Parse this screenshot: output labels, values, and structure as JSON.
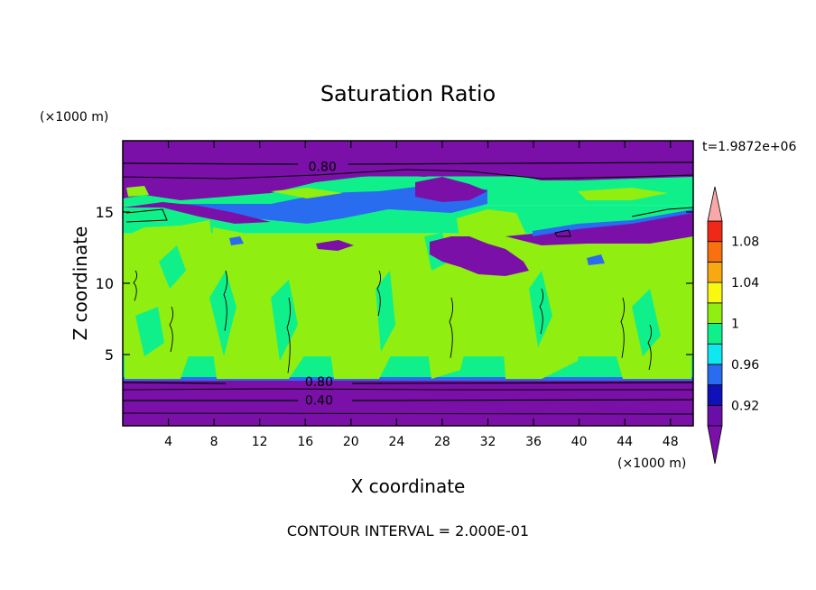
{
  "chart_data": {
    "type": "heatmap",
    "title": "Saturation Ratio",
    "xlabel": "X coordinate",
    "ylabel": "Z coordinate",
    "x_unit_label": "(×1000 m)",
    "y_unit_label": "(×1000 m)",
    "time_label": "t=1.9872e+06",
    "footer": "CONTOUR INTERVAL = 2.000E-01",
    "xlim": [
      0,
      50
    ],
    "ylim": [
      0,
      20
    ],
    "x_ticks": [
      "4",
      "8",
      "12",
      "16",
      "20",
      "24",
      "28",
      "32",
      "36",
      "40",
      "44",
      "48"
    ],
    "x_tick_values": [
      4,
      8,
      12,
      16,
      20,
      24,
      28,
      32,
      36,
      40,
      44,
      48
    ],
    "y_ticks": [
      "5",
      "10",
      "15"
    ],
    "y_tick_values": [
      5,
      10,
      15
    ],
    "colorbar": {
      "labels": [
        "0.92",
        "0.96",
        "1",
        "1.04",
        "1.08"
      ],
      "label_values": [
        0.92,
        0.96,
        1.0,
        1.04,
        1.08
      ],
      "levels": [
        0.9,
        0.92,
        0.94,
        0.96,
        0.98,
        1.0,
        1.02,
        1.04,
        1.06,
        1.08,
        1.1
      ],
      "colors": [
        "#6a0ea8",
        "#1010b8",
        "#2a6cf0",
        "#10e8f0",
        "#10f08a",
        "#90ee10",
        "#f8f810",
        "#f8a810",
        "#f87010",
        "#f02818",
        "#f8a8a8"
      ],
      "under_color": "#7a10a8",
      "over_color": "#f8a8a8"
    },
    "bands": [
      {
        "z": [
          0,
          3.5
        ],
        "color": "#7a10a8",
        "level": "below 0.90"
      },
      {
        "z": [
          3.5,
          13.5
        ],
        "color": "#90ee10",
        "level": "1.00-1.02",
        "note": "mixed with 0.98-1.00 regions"
      },
      {
        "z": [
          13.5,
          15.5
        ],
        "color": "#10f08a",
        "level": "0.98-1.00"
      },
      {
        "z": [
          15.5,
          17.5
        ],
        "color": "#10f08a",
        "level": "0.98-1.00"
      },
      {
        "z": [
          17.5,
          20
        ],
        "color": "#7a10a8",
        "level": "below 0.90"
      }
    ],
    "contour_labels": [
      {
        "text": "0.80",
        "x": 17.5,
        "z": 18.2
      },
      {
        "text": "0.80",
        "x": 17.2,
        "z": 3.1
      },
      {
        "text": "0.40",
        "x": 17.2,
        "z": 1.8
      }
    ]
  }
}
